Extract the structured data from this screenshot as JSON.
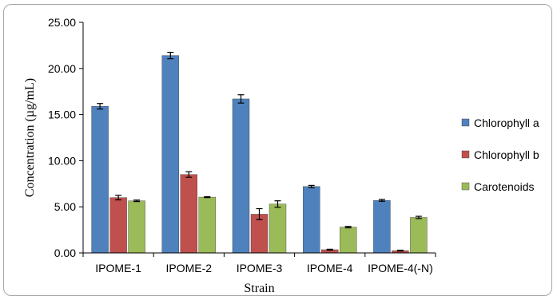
{
  "chart_data": {
    "type": "bar",
    "title": "",
    "xlabel": "Strain",
    "ylabel": "Concentration (µg/mL)",
    "ylim": [
      0,
      25
    ],
    "yticks": [
      "0.00",
      "5.00",
      "10.00",
      "15.00",
      "20.00",
      "25.00"
    ],
    "categories": [
      "IPOME-1",
      "IPOME-2",
      "IPOME-3",
      "IPOME-4",
      "IPOME-4(-N)"
    ],
    "series": [
      {
        "name": "Chlorophyll a",
        "color": "#4f81bd",
        "values": [
          15.9,
          21.4,
          16.7,
          7.2,
          5.7
        ],
        "errors": [
          0.3,
          0.35,
          0.45,
          0.12,
          0.1
        ]
      },
      {
        "name": "Chlorophyll b",
        "color": "#c0504d",
        "values": [
          6.0,
          8.5,
          4.2,
          0.35,
          0.25
        ],
        "errors": [
          0.25,
          0.3,
          0.6,
          0.05,
          0.05
        ]
      },
      {
        "name": "Carotenoids",
        "color": "#9bbb59",
        "values": [
          5.65,
          6.05,
          5.3,
          2.8,
          3.85
        ],
        "errors": [
          0.08,
          0.05,
          0.35,
          0.08,
          0.12
        ]
      }
    ],
    "grid": false,
    "legend_position": "right"
  }
}
